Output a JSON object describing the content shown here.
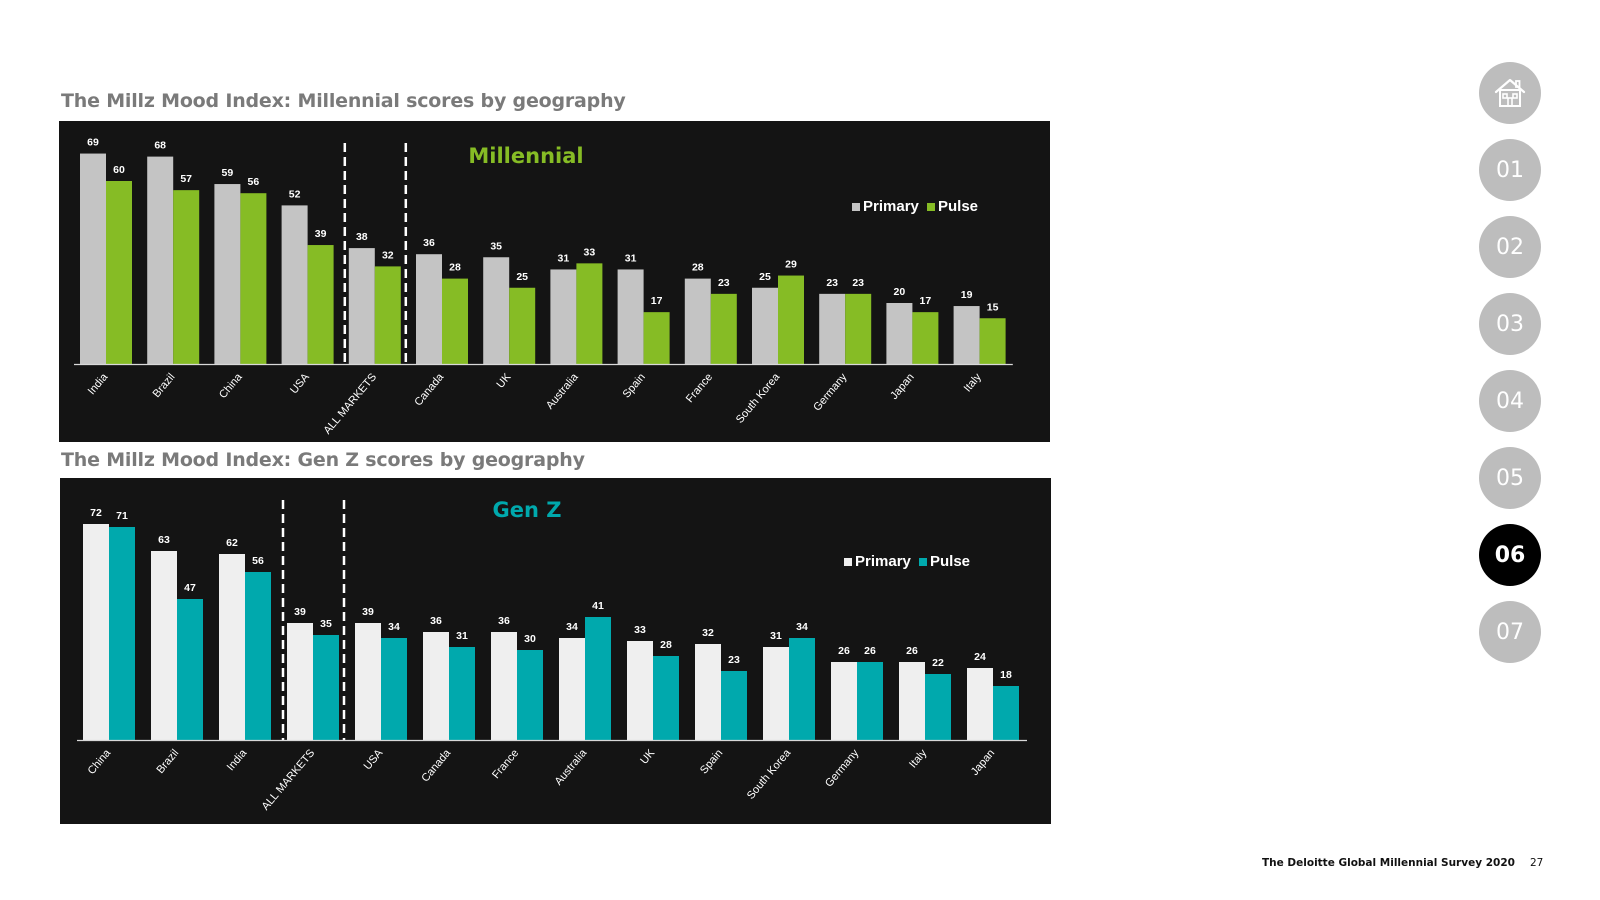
{
  "colors": {
    "primary": "#c4c4c4",
    "primary_genz": "#efefef",
    "pulse_millennial": "#86bc25",
    "pulse_genz": "#00a9ad",
    "panel_bg": "#141414"
  },
  "nav": {
    "home_icon": "home-icon",
    "items": [
      "01",
      "02",
      "03",
      "04",
      "05",
      "06",
      "07"
    ],
    "active": "06"
  },
  "footer": {
    "survey": "The Deloitte Global Millennial Survey 2020",
    "page": "27"
  },
  "charts": [
    {
      "section_title": "The Millz Mood Index: Millennial scores by geography",
      "chart_data": {
        "type": "bar",
        "title": "Millennial",
        "title_color": "#86bc25",
        "categories": [
          "India",
          "Brazil",
          "China",
          "USA",
          "ALL MARKETS",
          "Canada",
          "UK",
          "Australia",
          "Spain",
          "France",
          "South Korea",
          "Germany",
          "Japan",
          "Italy"
        ],
        "series": [
          {
            "name": "Primary",
            "color": "#c4c4c4",
            "values": [
              69,
              68,
              59,
              52,
              38,
              36,
              35,
              31,
              31,
              28,
              25,
              23,
              20,
              19
            ]
          },
          {
            "name": "Pulse",
            "color": "#86bc25",
            "values": [
              60,
              57,
              56,
              39,
              32,
              28,
              25,
              33,
              17,
              23,
              29,
              23,
              17,
              15
            ]
          }
        ],
        "highlight_category": "ALL MARKETS",
        "legend_position": "right",
        "ylim": [
          0,
          75
        ],
        "grid": false,
        "data_labels": true
      }
    },
    {
      "section_title": "The Millz Mood Index: Gen Z scores by geography",
      "chart_data": {
        "type": "bar",
        "title": "Gen Z",
        "title_color": "#00a9ad",
        "categories": [
          "China",
          "Brazil",
          "India",
          "ALL MARKETS",
          "USA",
          "Canada",
          "France",
          "Australia",
          "UK",
          "Spain",
          "South Korea",
          "Germany",
          "Italy",
          "Japan"
        ],
        "series": [
          {
            "name": "Primary",
            "color": "#efefef",
            "values": [
              72,
              63,
              62,
              39,
              39,
              36,
              36,
              34,
              33,
              32,
              31,
              26,
              26,
              24
            ]
          },
          {
            "name": "Pulse",
            "color": "#00a9ad",
            "values": [
              71,
              47,
              56,
              35,
              34,
              31,
              30,
              41,
              28,
              23,
              34,
              26,
              22,
              18
            ]
          }
        ],
        "highlight_category": "ALL MARKETS",
        "legend_position": "right",
        "ylim": [
          0,
          75
        ],
        "grid": false,
        "data_labels": true
      }
    }
  ]
}
